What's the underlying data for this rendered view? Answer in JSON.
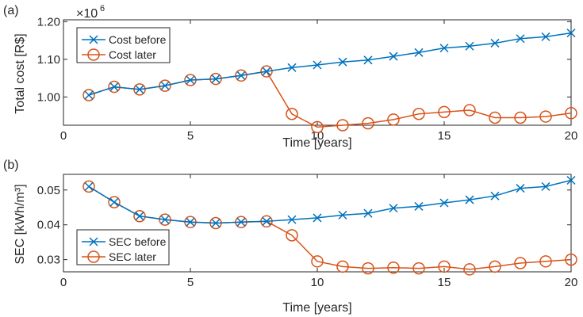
{
  "chart_data": [
    {
      "type": "line",
      "panel_label": "(a)",
      "xlabel": "Time [years]",
      "ylabel": "Total cost [R$]",
      "exponent_label": "×10",
      "exponent_power": "6",
      "xlim": [
        0,
        20
      ],
      "ylim": [
        0.925,
        1.205
      ],
      "xticks": [
        0,
        5,
        10,
        15,
        20
      ],
      "xtick_labels": [
        "0",
        "5",
        "10",
        "15",
        "20"
      ],
      "yticks": [
        1.0,
        1.1,
        1.2
      ],
      "ytick_labels": [
        "1.00",
        "1.10",
        "1.20"
      ],
      "legend_position": "top-left",
      "grid": false,
      "x": [
        1,
        2,
        3,
        4,
        5,
        6,
        7,
        8,
        9,
        10,
        11,
        12,
        13,
        14,
        15,
        16,
        17,
        18,
        19,
        20
      ],
      "series": [
        {
          "name": "Cost before",
          "marker": "x",
          "color": "#0072BD",
          "values": [
            1.005,
            1.027,
            1.02,
            1.03,
            1.045,
            1.048,
            1.057,
            1.068,
            1.078,
            1.085,
            1.093,
            1.098,
            1.108,
            1.118,
            1.13,
            1.135,
            1.143,
            1.155,
            1.16,
            1.17
          ]
        },
        {
          "name": "Cost later",
          "marker": "o",
          "color": "#D95319",
          "values": [
            1.005,
            1.027,
            1.02,
            1.03,
            1.045,
            1.048,
            1.057,
            1.068,
            0.955,
            0.92,
            0.925,
            0.93,
            0.94,
            0.955,
            0.96,
            0.965,
            0.945,
            0.945,
            0.948,
            0.957
          ]
        }
      ]
    },
    {
      "type": "line",
      "panel_label": "(b)",
      "xlabel": "Time [years]",
      "ylabel": "SEC [kWh/m³]",
      "xlim": [
        0,
        20
      ],
      "ylim": [
        0.0265,
        0.0545
      ],
      "xticks": [
        0,
        5,
        10,
        15,
        20
      ],
      "xtick_labels": [
        "0",
        "5",
        "10",
        "15",
        "20"
      ],
      "yticks": [
        0.03,
        0.04,
        0.05
      ],
      "ytick_labels": [
        "0.03",
        "0.04",
        "0.05"
      ],
      "legend_position": "bottom-left",
      "grid": false,
      "x": [
        1,
        2,
        3,
        4,
        5,
        6,
        7,
        8,
        9,
        10,
        11,
        12,
        13,
        14,
        15,
        16,
        17,
        18,
        19,
        20
      ],
      "series": [
        {
          "name": "SEC before",
          "marker": "x",
          "color": "#0072BD",
          "values": [
            0.051,
            0.0465,
            0.0425,
            0.0415,
            0.0408,
            0.0405,
            0.0408,
            0.041,
            0.0415,
            0.042,
            0.0428,
            0.0433,
            0.0448,
            0.0453,
            0.0463,
            0.0472,
            0.0483,
            0.0505,
            0.051,
            0.0528
          ]
        },
        {
          "name": "SEC later",
          "marker": "o",
          "color": "#D95319",
          "values": [
            0.051,
            0.0465,
            0.0425,
            0.0415,
            0.0408,
            0.0405,
            0.0408,
            0.041,
            0.037,
            0.0295,
            0.028,
            0.0275,
            0.0277,
            0.0275,
            0.028,
            0.0272,
            0.028,
            0.029,
            0.0295,
            0.03
          ]
        }
      ]
    }
  ]
}
